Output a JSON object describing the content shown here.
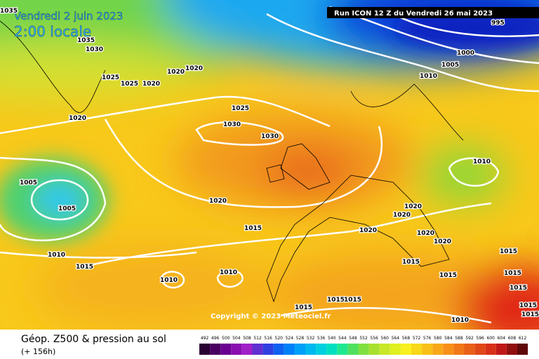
{
  "header": {
    "date": "Vendredi 2 juin 2023",
    "time": "2:00 locale",
    "run": "Run ICON 12 Z du Vendredi 26 mai 2023"
  },
  "copyright": "Copyright © 2023 Meteociel.fr",
  "footer": {
    "title": "Géop. Z500 & pression au sol",
    "lead": "(+ 156h)"
  },
  "scale": {
    "labels": [
      492,
      496,
      500,
      504,
      508,
      512,
      516,
      520,
      524,
      528,
      532,
      536,
      540,
      544,
      548,
      552,
      556,
      560,
      564,
      568,
      572,
      576,
      580,
      584,
      588,
      592,
      596,
      600,
      604,
      608,
      612
    ]
  },
  "isobar_labels": [
    "1035",
    "1035",
    "1030",
    "1025",
    "1025",
    "1020",
    "1020",
    "1020",
    "1020",
    "1025",
    "1030",
    "1030",
    "995",
    "1000",
    "1005",
    "1010",
    "1010",
    "1005",
    "1005",
    "1020",
    "1015",
    "1020",
    "1020",
    "1020",
    "1020",
    "1020",
    "1015",
    "1015",
    "1015",
    "1010",
    "1015",
    "1010",
    "1010",
    "1015",
    "1015",
    "1015",
    "1015",
    "1015",
    "1010",
    "1015",
    "1015"
  ]
}
